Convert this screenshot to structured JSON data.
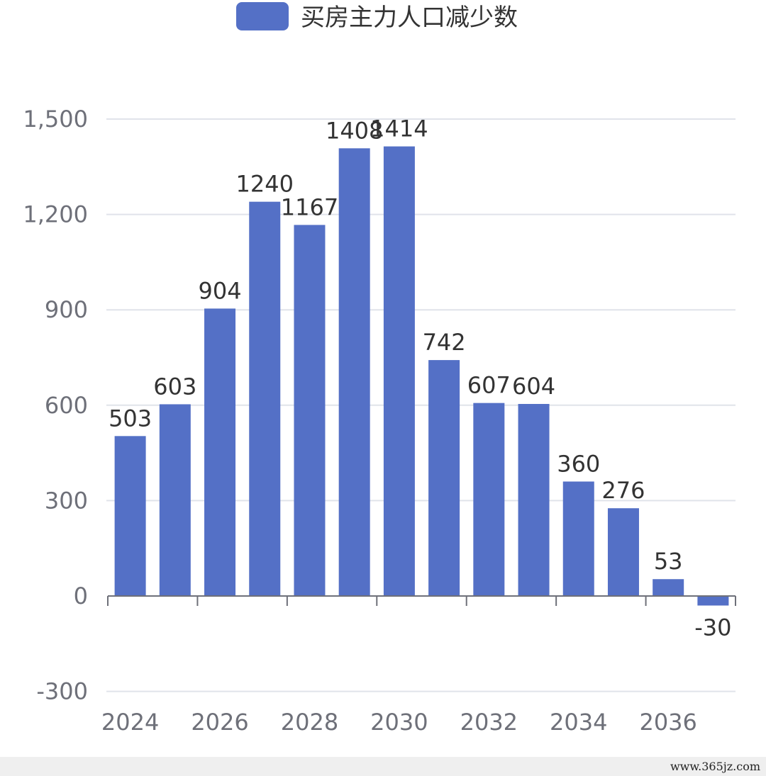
{
  "chart_data": {
    "type": "bar",
    "title": "",
    "xlabel": "",
    "ylabel": "",
    "legend": [
      "买房主力人口减少数"
    ],
    "legend_position": "top-center",
    "grid": true,
    "categories": [
      "2024",
      "2025",
      "2026",
      "2027",
      "2028",
      "2029",
      "2030",
      "2031",
      "2032",
      "2033",
      "2034",
      "2035",
      "2036",
      "2037"
    ],
    "series": [
      {
        "name": "买房主力人口减少数",
        "color": "#5470c6",
        "values": [
          503,
          603,
          904,
          1240,
          1167,
          1408,
          1414,
          742,
          607,
          604,
          360,
          276,
          53,
          -30
        ],
        "labels": [
          "503",
          "603",
          "904",
          "1240",
          "1167",
          "1408",
          "1414",
          "742",
          "607",
          "604",
          "360",
          "276",
          "53",
          "-30"
        ]
      }
    ],
    "x_tick_labels": [
      "2024",
      "2026",
      "2028",
      "2030",
      "2032",
      "2034",
      "2036"
    ],
    "y_ticks": [
      -300,
      0,
      300,
      600,
      900,
      1200,
      1500
    ],
    "y_tick_labels": [
      "-300",
      "0",
      "300",
      "600",
      "900",
      "1,200",
      "1,500"
    ],
    "ylim": [
      -300,
      1500
    ]
  },
  "footer": {
    "watermark": "www.365jz.com"
  }
}
